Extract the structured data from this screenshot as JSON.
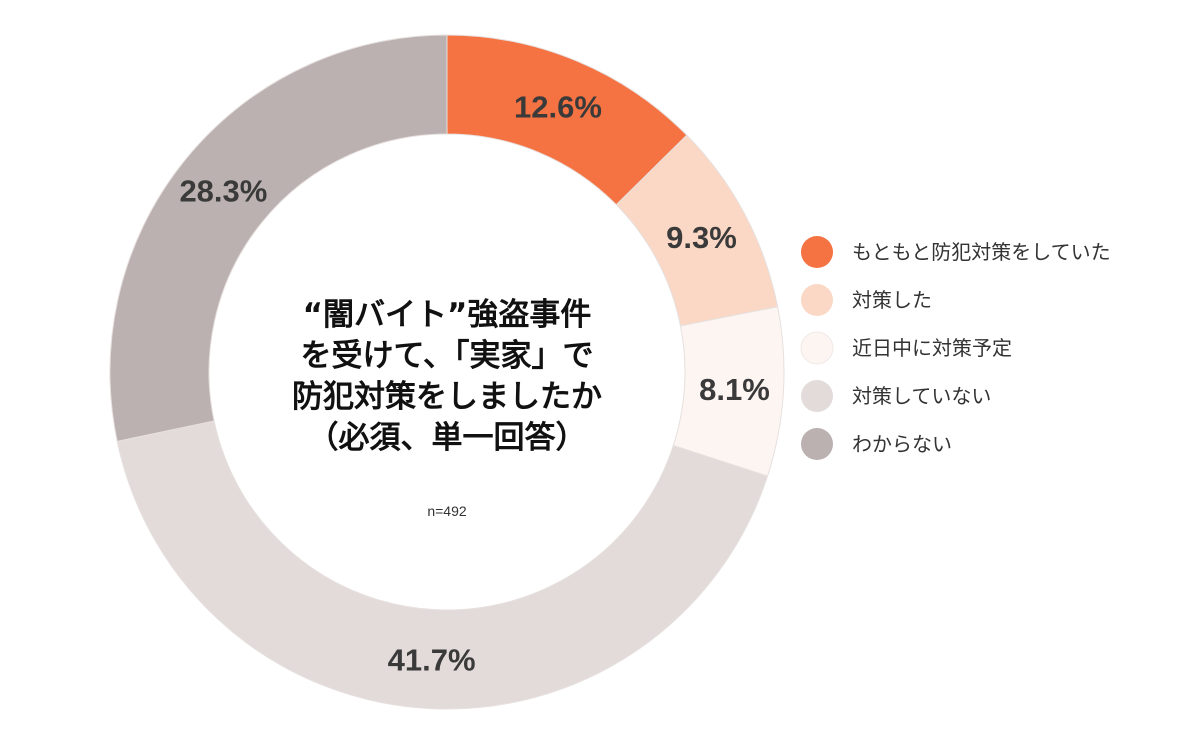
{
  "chart_data": {
    "type": "pie",
    "donut": true,
    "title_lines": [
      "“闇バイト”強盗事件",
      "を受けて、「実家」で",
      "防犯対策をしましたか",
      "（必須、単一回答）"
    ],
    "note": "n=492",
    "legend_position": "right",
    "slices": [
      {
        "label": "もともと防犯対策をしていた",
        "value": 12.6,
        "value_label": "12.6%",
        "color": "#f57242"
      },
      {
        "label": "対策した",
        "value": 9.3,
        "value_label": "9.3%",
        "color": "#fbd8c5"
      },
      {
        "label": "近日中に対策予定",
        "value": 8.1,
        "value_label": "8.1%",
        "color": "#fdf5f2"
      },
      {
        "label": "対策していない",
        "value": 41.7,
        "value_label": "41.7%",
        "color": "#e2dbd9"
      },
      {
        "label": "わからない",
        "value": 28.3,
        "value_label": "28.3%",
        "color": "#bbb1b0"
      }
    ]
  }
}
